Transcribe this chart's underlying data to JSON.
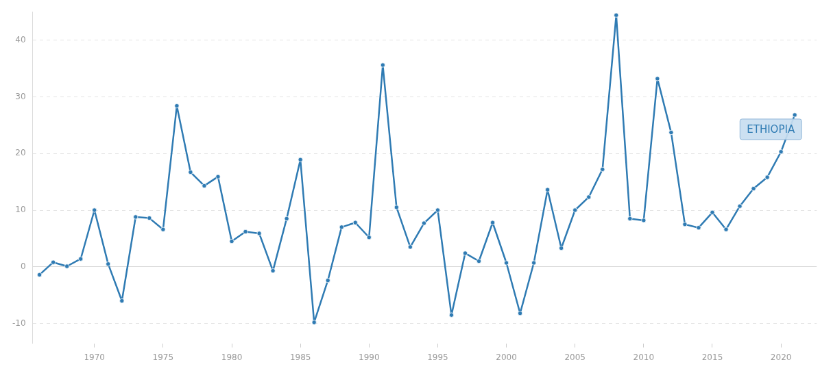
{
  "chart_data": {
    "type": "line",
    "x": [
      1966,
      1967,
      1968,
      1969,
      1970,
      1971,
      1972,
      1973,
      1974,
      1975,
      1976,
      1977,
      1978,
      1979,
      1980,
      1981,
      1982,
      1983,
      1984,
      1985,
      1986,
      1987,
      1988,
      1989,
      1990,
      1991,
      1992,
      1993,
      1994,
      1995,
      1996,
      1997,
      1998,
      1999,
      2000,
      2001,
      2002,
      2003,
      2004,
      2005,
      2006,
      2007,
      2008,
      2009,
      2010,
      2011,
      2012,
      2013,
      2014,
      2015,
      2016,
      2017,
      2018,
      2019,
      2020,
      2021
    ],
    "series": [
      {
        "name": "ETHIOPIA",
        "color": "#2f7bb3",
        "values": [
          -1.4,
          0.8,
          0.1,
          1.4,
          10.0,
          0.5,
          -6.0,
          8.8,
          8.6,
          6.6,
          28.4,
          16.7,
          14.3,
          15.9,
          4.5,
          6.2,
          5.9,
          -0.7,
          8.5,
          18.9,
          -9.8,
          -2.4,
          7.0,
          7.8,
          5.2,
          35.6,
          10.5,
          3.5,
          7.7,
          10.0,
          -8.5,
          2.4,
          1.0,
          7.8,
          0.7,
          -8.2,
          0.7,
          13.6,
          3.3,
          10.0,
          12.3,
          17.2,
          44.4,
          8.5,
          8.2,
          33.2,
          23.7,
          7.5,
          6.9,
          9.6,
          6.6,
          10.7,
          13.8,
          15.8,
          20.3,
          26.8
        ]
      }
    ],
    "xlim": [
      1965.5,
      2022.6
    ],
    "xticks": [
      1970,
      1975,
      1980,
      1985,
      1990,
      1995,
      2000,
      2005,
      2010,
      2015,
      2020
    ],
    "ylim": [
      -13.5,
      45
    ],
    "yticks": [
      -10,
      0,
      10,
      20,
      30,
      40
    ],
    "grid": "y",
    "legend": false,
    "marker": "circle",
    "line_style": "solid"
  }
}
